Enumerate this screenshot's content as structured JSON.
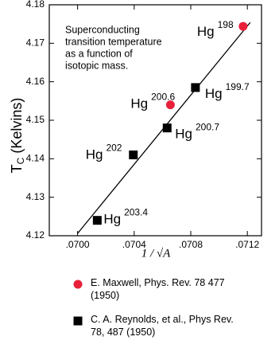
{
  "chart_data": {
    "type": "scatter",
    "annotation": [
      "Superconducting",
      "transition temperature",
      "as a function of",
      "isotopic mass."
    ],
    "x_label": "1 / √A",
    "y_label": "T",
    "y_label_sub": "C",
    "y_label_rest": "(Kelvins)",
    "xlim": [
      0.0698,
      0.0713
    ],
    "ylim": [
      4.12,
      4.18
    ],
    "xticks": [
      {
        "value": 0.07,
        "label": ".0700"
      },
      {
        "value": 0.0704,
        "label": ".0704"
      },
      {
        "value": 0.0708,
        "label": ".0708"
      },
      {
        "value": 0.0712,
        "label": ".0712"
      }
    ],
    "yticks": [
      4.12,
      4.13,
      4.14,
      4.15,
      4.16,
      4.17,
      4.18
    ],
    "series": [
      {
        "name": "E. Maxwell, Phys. Rev. 78 477 (1950)",
        "color": "#e8203a",
        "marker": "circle",
        "x": [
          0.07117,
          0.070656
        ],
        "values": [
          4.1744,
          4.154
        ],
        "point_labels": [
          {
            "element": "Hg",
            "mass": "198"
          },
          {
            "element": "Hg",
            "mass": "200.6"
          }
        ]
      },
      {
        "name": "C. A. Reynolds, et al., Phys Rev. 78, 487 (1950)",
        "color": "#000000",
        "marker": "square",
        "x": [
          0.070833,
          0.070633,
          0.070394,
          0.070139
        ],
        "values": [
          4.1585,
          4.148,
          4.141,
          4.124
        ],
        "point_labels": [
          {
            "element": "Hg",
            "mass": "199.7"
          },
          {
            "element": "Hg",
            "mass": "200.7"
          },
          {
            "element": "Hg",
            "mass": "202"
          },
          {
            "element": "Hg",
            "mass": "203.4"
          }
        ]
      }
    ],
    "fit": {
      "color": "#000000",
      "x": [
        0.07,
        0.07122
      ],
      "values": [
        4.1206,
        4.1754
      ]
    }
  }
}
